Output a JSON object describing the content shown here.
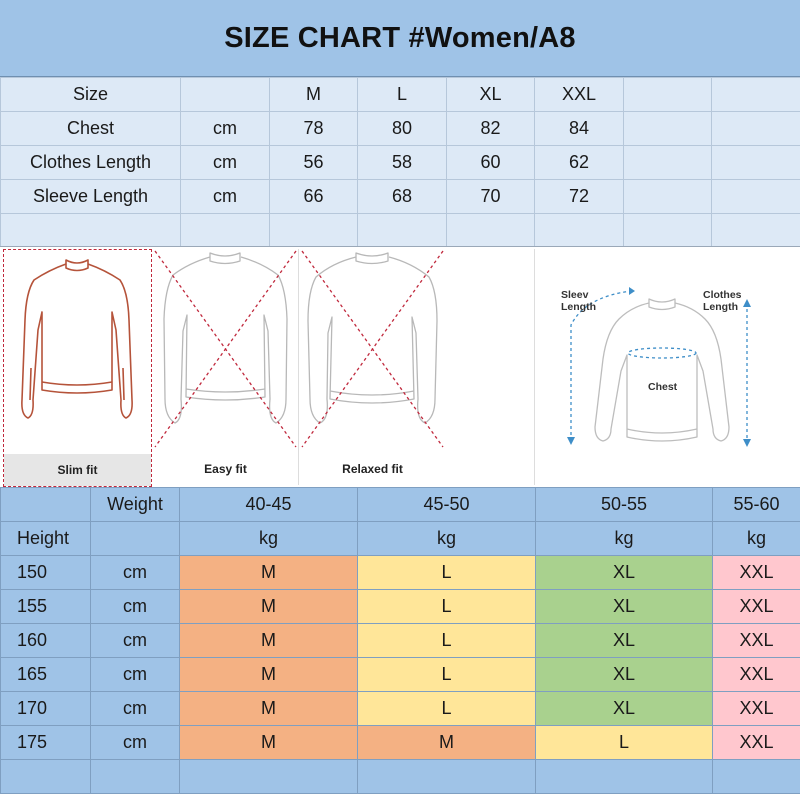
{
  "title": "SIZE CHART #Women/A8",
  "size_table": {
    "header": {
      "label": "Size",
      "sizes": [
        "M",
        "L",
        "XL",
        "XXL"
      ]
    },
    "rows": [
      {
        "label": "Chest",
        "unit": "cm",
        "values": [
          "78",
          "80",
          "82",
          "84"
        ]
      },
      {
        "label": "Clothes Length",
        "unit": "cm",
        "values": [
          "56",
          "58",
          "60",
          "62"
        ]
      },
      {
        "label": "Sleeve Length",
        "unit": "cm",
        "values": [
          "66",
          "68",
          "70",
          "72"
        ]
      }
    ]
  },
  "fits": {
    "slim": "Slim fit",
    "easy": "Easy fit",
    "relaxed": "Relaxed fit"
  },
  "measure_labels": {
    "sleeve_line1": "Sleev",
    "sleeve_line2": "Length",
    "clothes_line1": "Clothes",
    "clothes_line2": "Length",
    "chest": "Chest"
  },
  "recommend_table": {
    "weight_label": "Weight",
    "height_label": "Height",
    "weight_ranges": [
      "40-45",
      "45-50",
      "50-55",
      "55-60"
    ],
    "weight_unit": "kg",
    "height_unit": "cm",
    "rows": [
      {
        "height": "150",
        "sizes": [
          "M",
          "L",
          "XL",
          "XXL"
        ]
      },
      {
        "height": "155",
        "sizes": [
          "M",
          "L",
          "XL",
          "XXL"
        ]
      },
      {
        "height": "160",
        "sizes": [
          "M",
          "L",
          "XL",
          "XXL"
        ]
      },
      {
        "height": "165",
        "sizes": [
          "M",
          "L",
          "XL",
          "XXL"
        ]
      },
      {
        "height": "170",
        "sizes": [
          "M",
          "L",
          "XL",
          "XXL"
        ]
      },
      {
        "height": "175",
        "sizes": [
          "M",
          "M",
          "L",
          "XXL"
        ]
      }
    ],
    "size_colors": {
      "M": "#f4b183",
      "L": "#ffe699",
      "XL": "#a9d18e",
      "XXL": "#ffc7ce"
    }
  }
}
